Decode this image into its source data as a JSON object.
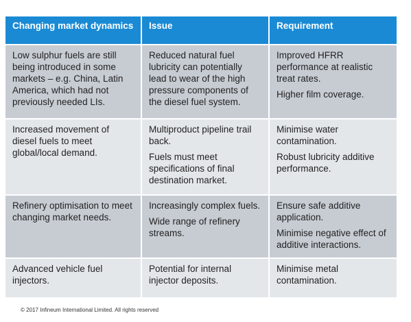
{
  "table": {
    "headers": [
      "Changing market dynamics",
      "Issue",
      "Requirement"
    ],
    "rows": [
      {
        "dynamics": [
          "Low sulphur fuels are still being introduced in some markets – e.g. China, Latin America, which had not previously needed LIs."
        ],
        "issue": [
          "Reduced natural fuel lubricity can potentially lead to wear of the high pressure components of the diesel fuel system."
        ],
        "requirement": [
          "Improved HFRR performance at realistic treat rates.",
          "Higher film coverage."
        ]
      },
      {
        "dynamics": [
          "Increased movement of diesel fuels to meet global/local demand."
        ],
        "issue": [
          "Multiproduct pipeline trail back.",
          "Fuels must meet specifications of final destination market."
        ],
        "requirement": [
          "Minimise water contamination.",
          "Robust lubricity additive performance."
        ]
      },
      {
        "dynamics": [
          "Refinery optimisation to meet changing market needs."
        ],
        "issue": [
          "Increasingly complex fuels.",
          "Wide range of refinery streams."
        ],
        "requirement": [
          "Ensure safe additive application.",
          "Minimise negative effect of additive interactions."
        ]
      },
      {
        "dynamics": [
          "Advanced vehicle fuel injectors."
        ],
        "issue": [
          "Potential for internal injector deposits."
        ],
        "requirement": [
          "Minimise metal contamination."
        ]
      }
    ]
  },
  "footer": {
    "copyright": "© 2017 Infineum International Limited. All rights reserved"
  }
}
